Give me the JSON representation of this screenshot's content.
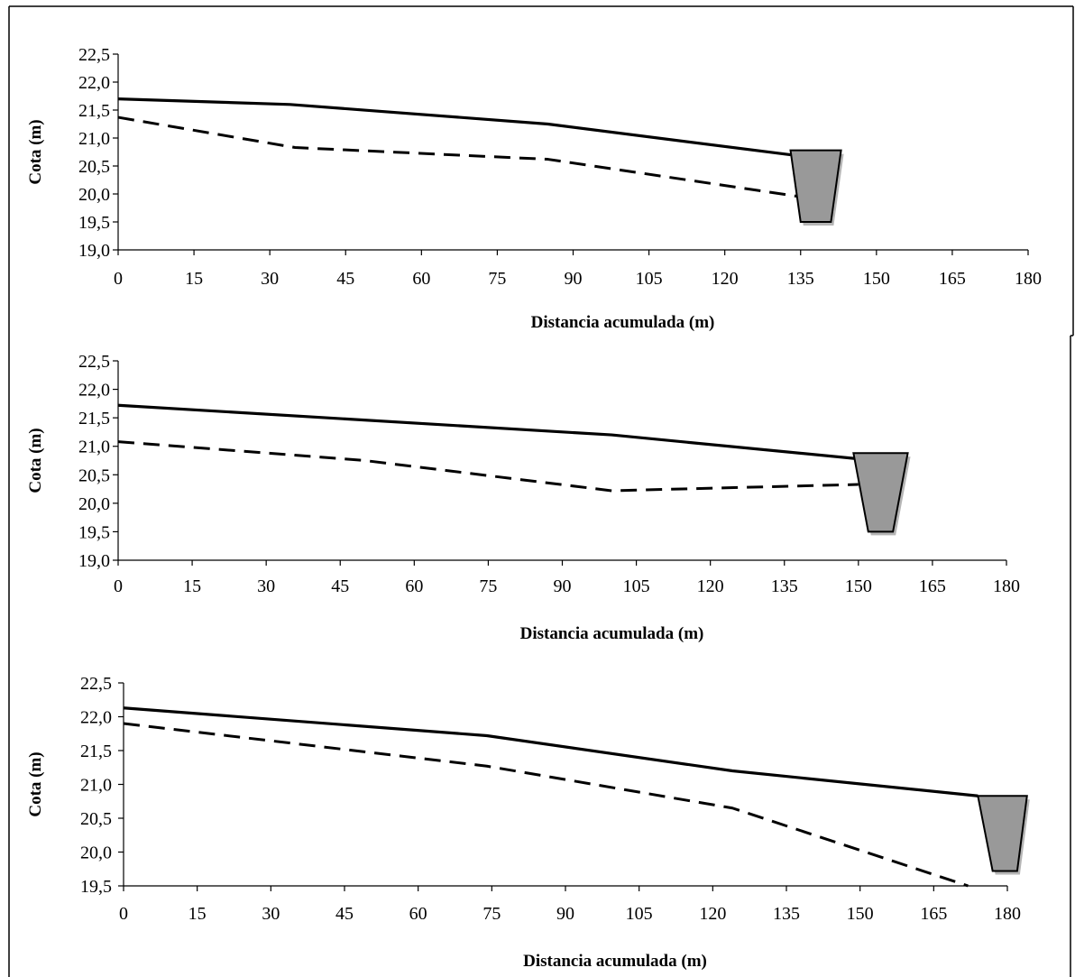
{
  "chart_data": [
    {
      "type": "line",
      "xlabel": "Distancia acumulada (m)",
      "ylabel": "Cota (m)",
      "xlim": [
        0,
        180
      ],
      "ylim": [
        19.0,
        22.5
      ],
      "x_ticks": [
        "0",
        "15",
        "30",
        "45",
        "60",
        "75",
        "90",
        "105",
        "120",
        "135",
        "150",
        "165",
        "180"
      ],
      "y_ticks": [
        "19,0",
        "19,5",
        "20,0",
        "20,5",
        "21,0",
        "21,5",
        "22,0",
        "22,5"
      ],
      "grid": false,
      "series": [
        {
          "style": "solid",
          "x": [
            0,
            34,
            85,
            133
          ],
          "y": [
            21.7,
            21.6,
            21.25,
            20.7
          ]
        },
        {
          "style": "dashed",
          "x": [
            0,
            35,
            85,
            135
          ],
          "y": [
            21.37,
            20.83,
            20.62,
            19.95
          ]
        }
      ],
      "ditch": {
        "x_top": [
          133,
          143
        ],
        "x_bottom": [
          135,
          141
        ],
        "y_top": 20.78,
        "y_bottom": 19.5
      }
    },
    {
      "type": "line",
      "xlabel": "Distancia acumulada  (m)",
      "ylabel": "Cota (m)",
      "xlim": [
        0,
        180
      ],
      "ylim": [
        19.0,
        22.5
      ],
      "x_ticks": [
        "0",
        "15",
        "30",
        "45",
        "60",
        "75",
        "90",
        "105",
        "120",
        "135",
        "150",
        "165",
        "180"
      ],
      "y_ticks": [
        "19,0",
        "19,5",
        "20,0",
        "20,5",
        "21,0",
        "21,5",
        "22,0",
        "22,5"
      ],
      "grid": false,
      "series": [
        {
          "style": "solid",
          "x": [
            0,
            100,
            150
          ],
          "y": [
            21.72,
            21.2,
            20.78
          ]
        },
        {
          "style": "dashed",
          "x": [
            0,
            50,
            100,
            150
          ],
          "y": [
            21.08,
            20.75,
            20.22,
            20.33
          ]
        }
      ],
      "ditch": {
        "x_top": [
          149,
          160
        ],
        "x_bottom": [
          152,
          157
        ],
        "y_top": 20.88,
        "y_bottom": 19.5
      }
    },
    {
      "type": "line",
      "xlabel": "Distancia acumulada (m)",
      "ylabel": "Cota (m)",
      "xlim": [
        0,
        180
      ],
      "ylim": [
        19.5,
        22.5
      ],
      "x_ticks": [
        "0",
        "15",
        "30",
        "45",
        "60",
        "75",
        "90",
        "105",
        "120",
        "135",
        "150",
        "165",
        "180"
      ],
      "y_ticks": [
        "19,5",
        "20,0",
        "20,5",
        "21,0",
        "21,5",
        "22,0",
        "22,5"
      ],
      "grid": false,
      "series": [
        {
          "style": "solid",
          "x": [
            0,
            74,
            124,
            174
          ],
          "y": [
            22.13,
            21.72,
            21.2,
            20.83
          ]
        },
        {
          "style": "dashed",
          "x": [
            0,
            74,
            124,
            172
          ],
          "y": [
            21.9,
            21.27,
            20.65,
            19.5
          ]
        }
      ],
      "ditch": {
        "x_top": [
          174,
          184
        ],
        "x_bottom": [
          177,
          182
        ],
        "y_top": 20.83,
        "y_bottom": 19.72
      }
    }
  ]
}
